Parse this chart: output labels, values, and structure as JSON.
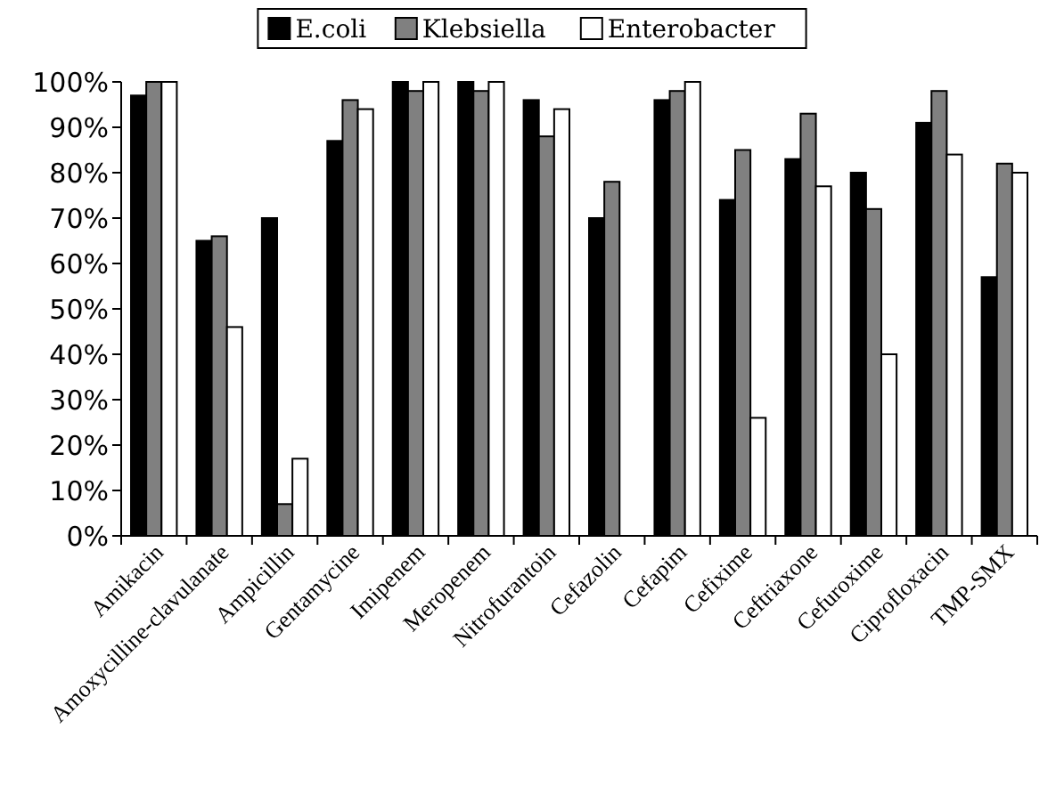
{
  "chart_data": {
    "type": "bar",
    "categories": [
      "Amikacin",
      "Amoxycilline-clavulanate",
      "Ampicillin",
      "Gentamycine",
      "Imipenem",
      "Meropenem",
      "Nitrofurantoin",
      "Cefazolin",
      "Cefapim",
      "Cefixime",
      "Ceftriaxone",
      "Cefuroxime",
      "Ciprofloxacin",
      "TMP-SMX"
    ],
    "series": [
      {
        "name": "E.coli",
        "color": "#000000",
        "values": [
          97,
          65,
          70,
          87,
          100,
          100,
          96,
          70,
          96,
          74,
          83,
          80,
          91,
          57
        ]
      },
      {
        "name": "Klebsiella",
        "color": "#808080",
        "values": [
          100,
          66,
          7,
          96,
          98,
          98,
          88,
          78,
          98,
          85,
          93,
          72,
          98,
          82
        ]
      },
      {
        "name": "Enterobacter",
        "color": "#ffffff",
        "values": [
          100,
          46,
          17,
          94,
          100,
          100,
          94,
          null,
          100,
          26,
          77,
          40,
          84,
          80
        ]
      }
    ],
    "ylim": [
      0,
      100
    ],
    "yticks": [
      {
        "value": 0,
        "label": "0%"
      },
      {
        "value": 10,
        "label": "10%"
      },
      {
        "value": 20,
        "label": "20%"
      },
      {
        "value": 30,
        "label": "30%"
      },
      {
        "value": 40,
        "label": "40%"
      },
      {
        "value": 50,
        "label": "50%"
      },
      {
        "value": 60,
        "label": "60%"
      },
      {
        "value": 70,
        "label": "70%"
      },
      {
        "value": 80,
        "label": "80%"
      },
      {
        "value": 90,
        "label": "90%"
      },
      {
        "value": 100,
        "label": "100%"
      }
    ],
    "grid": false,
    "legend": "top"
  }
}
